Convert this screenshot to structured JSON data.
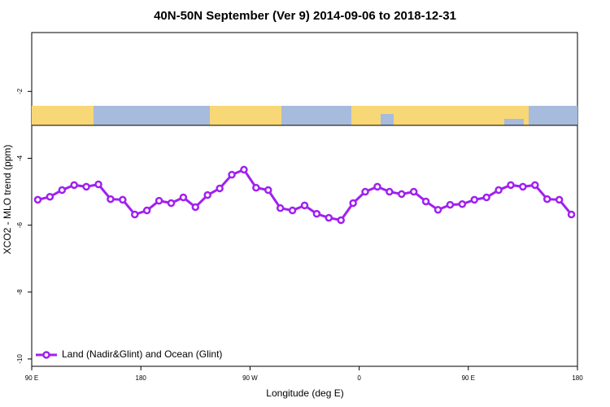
{
  "chart_data": {
    "type": "line",
    "title": "40N-50N September (Ver 9)   2014-09-06 to 2018-12-31",
    "xlabel": "Longitude (deg E)",
    "ylabel": "XCO2 - MLO trend (ppm)",
    "x": [
      95,
      105,
      115,
      125,
      135,
      145,
      155,
      165,
      175,
      185,
      195,
      205,
      215,
      225,
      235,
      245,
      255,
      265,
      275,
      285,
      295,
      305,
      315,
      325,
      335,
      345,
      355,
      365,
      375,
      385,
      395,
      405,
      415,
      425,
      435,
      445,
      455,
      465,
      475,
      485,
      495,
      505,
      515,
      525,
      535
    ],
    "series": [
      {
        "name": "Land (Nadir&Glint) and Ocean (Glint)",
        "color": "#a020f0",
        "values": [
          -5.24,
          -5.15,
          -4.95,
          -4.8,
          -4.85,
          -4.78,
          -5.22,
          -5.24,
          -5.68,
          -5.56,
          -5.27,
          -5.34,
          -5.17,
          -5.46,
          -5.1,
          -4.9,
          -4.49,
          -4.34,
          -4.88,
          -4.95,
          -5.49,
          -5.56,
          -5.41,
          -5.66,
          -5.78,
          -5.85,
          -5.34,
          -5.0,
          -4.85,
          -5.0,
          -5.07,
          -5.0,
          -5.29,
          -5.54,
          -5.39,
          -5.37,
          -5.24,
          -5.17,
          -4.95,
          -4.8,
          -4.85,
          -4.8,
          -5.22,
          -5.24,
          -5.68
        ]
      }
    ],
    "xlim": [
      90,
      540
    ],
    "xticks": [
      {
        "value": 90,
        "label": "90 E"
      },
      180,
      {
        "value": 270,
        "label": "90 W"
      },
      {
        "value": 360,
        "label": "0"
      },
      {
        "value": 450,
        "label": "90 E"
      },
      {
        "value": 540,
        "label": "180"
      }
    ],
    "ylim": [
      -10.22,
      -0.24
    ],
    "yticks": [
      -10,
      -8,
      -6,
      -4,
      -2
    ],
    "legend": "bottom-left"
  }
}
